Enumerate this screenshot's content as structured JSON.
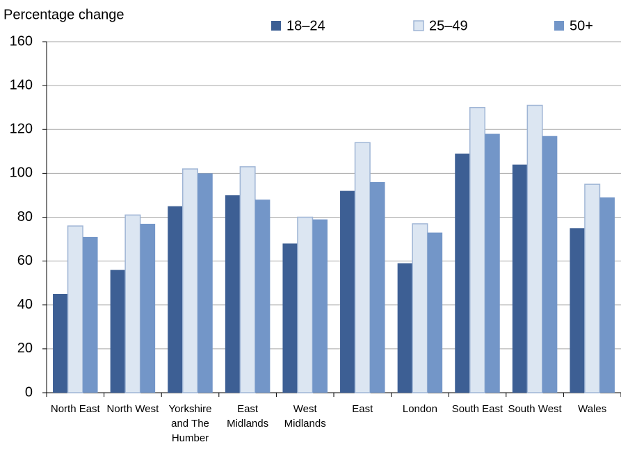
{
  "chart_data": {
    "type": "bar",
    "title": "Percentage change",
    "categories": [
      "North East",
      "North West",
      "Yorkshire and The Humber",
      "East Midlands",
      "West Midlands",
      "East",
      "London",
      "South East",
      "South West",
      "Wales"
    ],
    "series": [
      {
        "name": "18–24",
        "color": "#3d5f94",
        "values": [
          45,
          56,
          85,
          90,
          68,
          92,
          59,
          109,
          104,
          75
        ]
      },
      {
        "name": "25–49",
        "color": "#dce6f2",
        "values": [
          76,
          81,
          102,
          103,
          80,
          114,
          77,
          130,
          131,
          95
        ]
      },
      {
        "name": "50+",
        "color": "#7396c8",
        "values": [
          71,
          77,
          100,
          88,
          79,
          96,
          73,
          118,
          117,
          89
        ]
      }
    ],
    "ylim": [
      0,
      160
    ],
    "yticks": [
      0,
      20,
      40,
      60,
      80,
      100,
      120,
      140,
      160
    ],
    "grid": true
  }
}
